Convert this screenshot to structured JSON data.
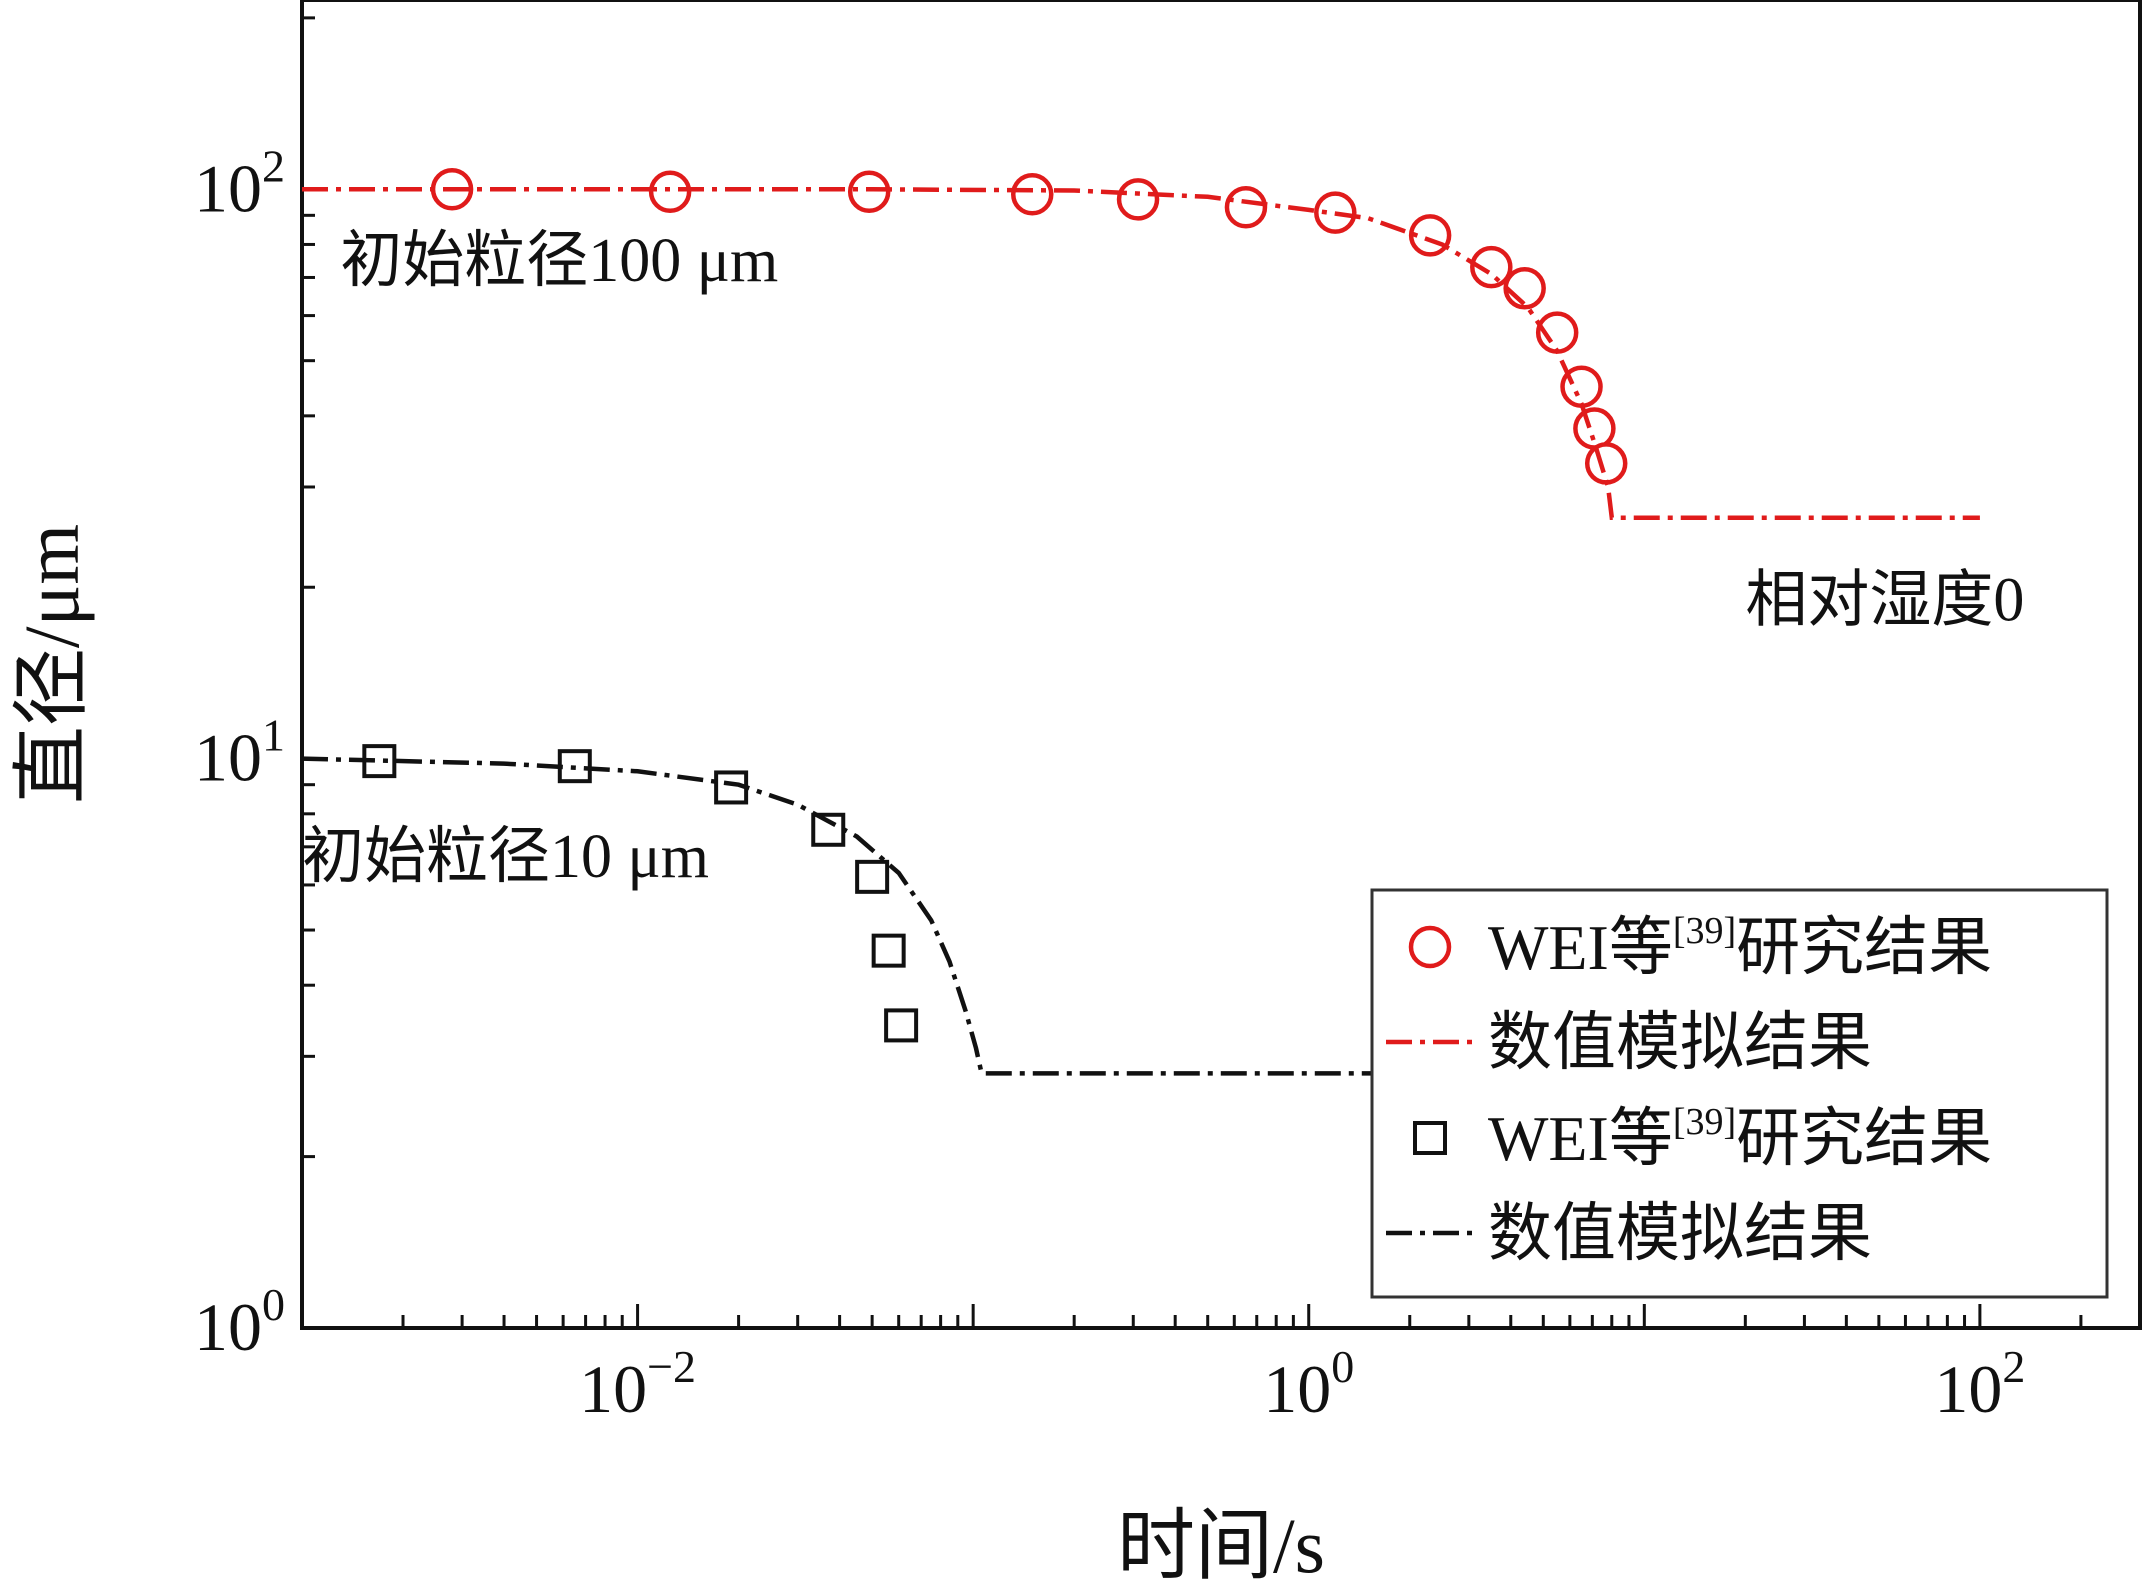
{
  "chart_data": {
    "type": "scatter",
    "xscale": "log",
    "yscale": "log",
    "xlim": [
      0.001,
      300
    ],
    "ylim": [
      1,
      215
    ],
    "xlabel": "时间/s",
    "ylabel": "直径/μm",
    "xticks": [
      {
        "value": 0.01,
        "base": "10",
        "exp": "−2"
      },
      {
        "value": 1,
        "base": "10",
        "exp": "0"
      },
      {
        "value": 100,
        "base": "10",
        "exp": "2"
      }
    ],
    "yticks": [
      {
        "value": 1,
        "base": "10",
        "exp": "0"
      },
      {
        "value": 10,
        "base": "10",
        "exp": "1"
      },
      {
        "value": 100,
        "base": "10",
        "exp": "2"
      }
    ],
    "annotations": [
      {
        "text": "初始粒径100 μm",
        "x": 0.0013,
        "y": 69
      },
      {
        "text": "相对湿度0",
        "x": 20,
        "y": 17.5
      },
      {
        "text": "初始粒径10 μm",
        "x": 0.001,
        "y": 6.2
      }
    ],
    "series": [
      {
        "name": "WEI等[39]研究结果",
        "kind": "marker-circle",
        "color": "#e01b1b",
        "x": [
          0.0028,
          0.0125,
          0.049,
          0.15,
          0.31,
          0.65,
          1.2,
          2.3,
          3.5,
          4.4,
          5.5,
          6.5,
          7.1,
          7.7
        ],
        "y": [
          100,
          99,
          99,
          98,
          96,
          93,
          91,
          83,
          73,
          67,
          56,
          45,
          38,
          33
        ]
      },
      {
        "name": "数值模拟结果",
        "kind": "line-dashdot",
        "color": "#e01b1b",
        "x": [
          0.001,
          0.05,
          0.2,
          0.5,
          1.0,
          1.5,
          2.5,
          3.5,
          4.5,
          5.5,
          6.5,
          7.2,
          7.8,
          8.0,
          100
        ],
        "y": [
          100,
          100,
          99.5,
          97,
          92,
          89,
          80,
          71,
          62,
          52,
          42,
          35,
          30,
          26.5,
          26.5
        ]
      },
      {
        "name": "WEI等[39]研究结果",
        "kind": "marker-square",
        "color": "#111111",
        "x": [
          0.0017,
          0.0065,
          0.019,
          0.037,
          0.05,
          0.056,
          0.061
        ],
        "y": [
          9.9,
          9.7,
          8.9,
          7.5,
          6.2,
          4.6,
          3.4
        ]
      },
      {
        "name": "数值模拟结果",
        "kind": "line-dashdot",
        "color": "#111111",
        "x": [
          0.001,
          0.004,
          0.01,
          0.02,
          0.03,
          0.045,
          0.06,
          0.075,
          0.085,
          0.095,
          0.102,
          0.106,
          2
        ],
        "y": [
          10,
          9.8,
          9.5,
          9,
          8.3,
          7.3,
          6.3,
          5.2,
          4.4,
          3.6,
          3.1,
          2.8,
          2.8
        ]
      }
    ],
    "legend": {
      "position": "bottom-right",
      "entries": [
        {
          "kind": "marker-circle",
          "color": "#e01b1b",
          "label": "WEI等",
          "sup": "[39]",
          "suffix": "研究结果"
        },
        {
          "kind": "line-dashdot",
          "color": "#e01b1b",
          "label": "数值模拟结果",
          "sup": "",
          "suffix": ""
        },
        {
          "kind": "marker-square",
          "color": "#111111",
          "label": "WEI等",
          "sup": "[39]",
          "suffix": "研究结果"
        },
        {
          "kind": "line-dashdot",
          "color": "#111111",
          "label": "数值模拟结果",
          "sup": "",
          "suffix": ""
        }
      ]
    }
  }
}
